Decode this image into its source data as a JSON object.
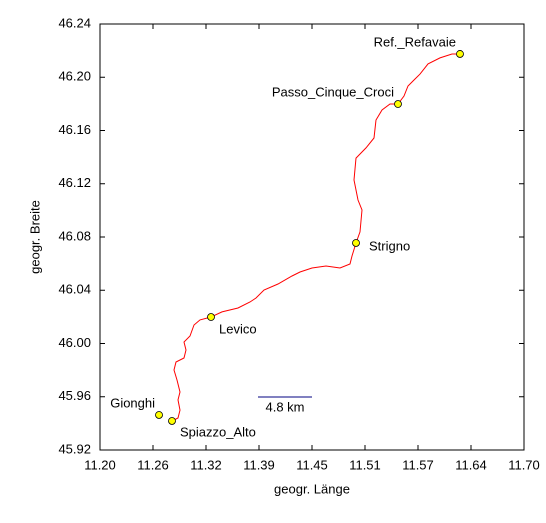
{
  "chart_data": {
    "type": "map-route",
    "xlabel": "geogr. Länge",
    "ylabel": "geogr. Breite",
    "xlim": [
      11.2,
      11.7
    ],
    "ylim": [
      45.92,
      46.24
    ],
    "xticks": [
      {
        "value": 11.2,
        "label": "11.20"
      },
      {
        "value": 11.2625,
        "label": "11.26"
      },
      {
        "value": 11.325,
        "label": "11.32"
      },
      {
        "value": 11.3875,
        "label": "11.39"
      },
      {
        "value": 11.45,
        "label": "11.45"
      },
      {
        "value": 11.5125,
        "label": "11.51"
      },
      {
        "value": 11.575,
        "label": "11.57"
      },
      {
        "value": 11.6375,
        "label": "11.64"
      },
      {
        "value": 11.7,
        "label": "11.70"
      }
    ],
    "yticks": [
      45.92,
      45.96,
      {
        "value": 46.0,
        "label": "46.00"
      },
      46.04,
      46.08,
      46.12,
      46.16,
      {
        "value": 46.2,
        "label": "46.20"
      },
      46.24
    ],
    "scale_label": "4.8 km",
    "route": {
      "color": "#ff0000",
      "x": [
        11.2849,
        11.292,
        11.2943,
        11.292,
        11.2943,
        11.2908,
        11.2873,
        11.2896,
        11.2991,
        11.3014,
        11.2991,
        11.3061,
        11.3108,
        11.3179,
        11.3309,
        11.3439,
        11.3627,
        11.3769,
        11.384,
        11.3934,
        11.4099,
        11.4264,
        11.4358,
        11.45,
        11.4665,
        11.483,
        11.4948,
        11.4972,
        11.5019,
        11.5066,
        11.509,
        11.5042,
        11.4995,
        11.5019,
        11.5137,
        11.5231,
        11.5255,
        11.5325,
        11.542,
        11.5514,
        11.5585,
        11.5632,
        11.5703,
        11.5774,
        11.5868,
        11.6009,
        11.6151,
        11.6245
      ],
      "y": [
        45.9418,
        45.944,
        45.95,
        45.9576,
        45.9636,
        45.9726,
        45.9801,
        45.9861,
        45.9891,
        45.9951,
        46.0011,
        46.0056,
        46.0139,
        46.0177,
        46.0199,
        46.0237,
        46.0267,
        46.0312,
        46.0342,
        46.0402,
        46.0447,
        46.0507,
        46.0537,
        46.0567,
        46.0582,
        46.0567,
        46.0597,
        46.0657,
        46.0755,
        46.0838,
        46.1003,
        46.1078,
        46.1228,
        46.1393,
        46.1469,
        46.1544,
        46.1679,
        46.1754,
        46.1799,
        46.1799,
        46.1859,
        46.1934,
        46.1979,
        46.2024,
        46.21,
        46.2145,
        46.2175,
        46.2175
      ]
    },
    "point_color": "#ffff00",
    "points": [
      {
        "label": "Ref._Refavaie",
        "x": 11.6245,
        "y": 46.2175
      },
      {
        "label": "Passo_Cinque_Croci",
        "x": 11.5514,
        "y": 46.1799
      },
      {
        "label": "Strigno",
        "x": 11.5019,
        "y": 46.0755
      },
      {
        "label": "Levico",
        "x": 11.3309,
        "y": 46.0199
      },
      {
        "label": "Gionghi",
        "x": 11.2696,
        "y": 45.9463
      },
      {
        "label": "Spiazzo_Alto",
        "x": 11.2849,
        "y": 45.9418
      }
    ]
  }
}
